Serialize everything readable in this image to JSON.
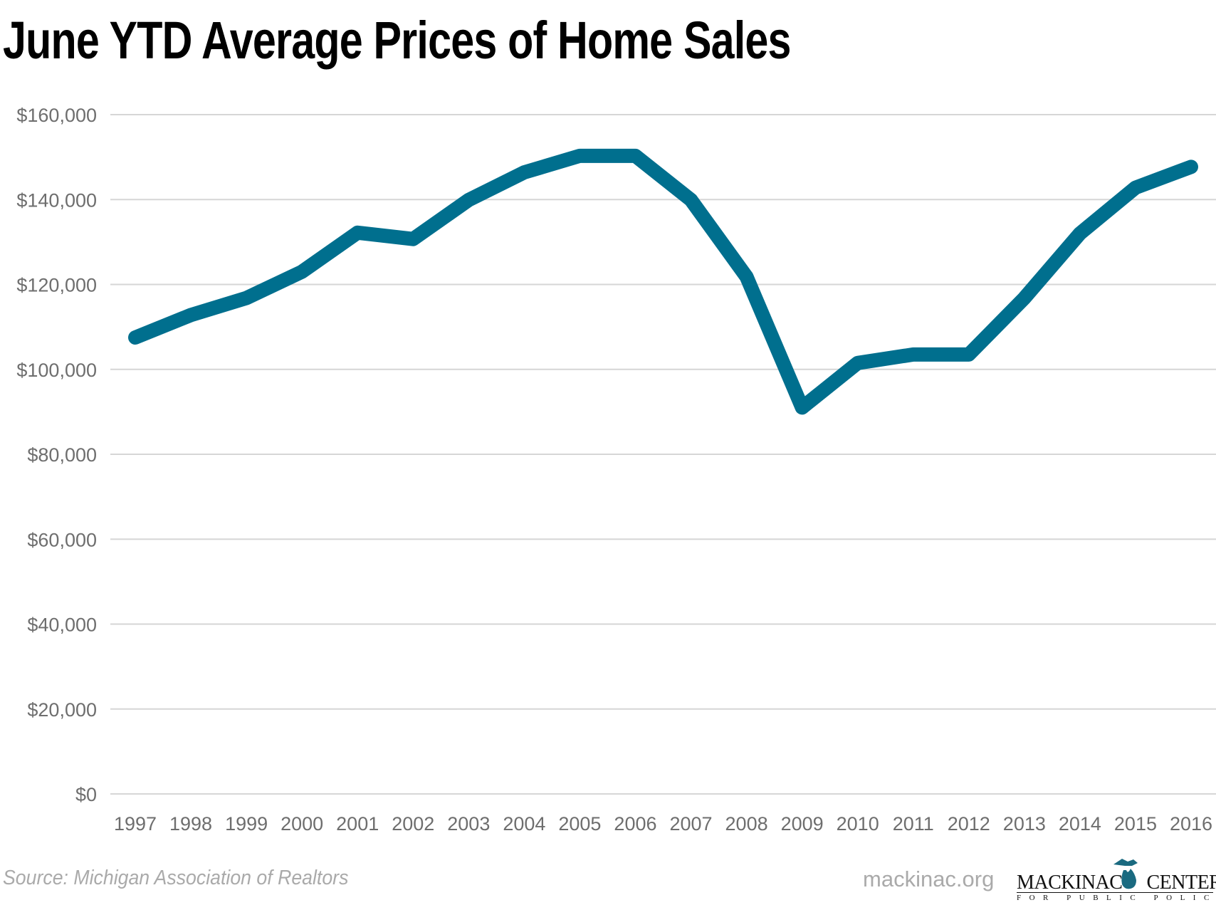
{
  "chart_data": {
    "type": "line",
    "title": "June YTD Average Prices of Home Sales",
    "xlabel": "",
    "ylabel": "",
    "x": [
      "1997",
      "1998",
      "1999",
      "2000",
      "2001",
      "2002",
      "2003",
      "2004",
      "2005",
      "2006",
      "2007",
      "2008",
      "2009",
      "2010",
      "2011",
      "2012",
      "2013",
      "2014",
      "2015",
      "2016"
    ],
    "series": [
      {
        "values": [
          107500,
          112800,
          116800,
          123000,
          132200,
          130700,
          139900,
          146400,
          150300,
          150300,
          139900,
          121800,
          91000,
          101500,
          103500,
          103500,
          116800,
          132000,
          142800,
          147700
        ]
      }
    ],
    "ylim": [
      0,
      160000
    ],
    "yticks": [
      0,
      20000,
      40000,
      60000,
      80000,
      100000,
      120000,
      140000,
      160000
    ],
    "ytick_labels": [
      "$0",
      "$20,000",
      "$40,000",
      "$60,000",
      "$80,000",
      "$100,000",
      "$120,000",
      "$140,000",
      "$160,000"
    ],
    "grid": "horizontal",
    "legend": "none",
    "line_color": "#006f8e",
    "grid_color": "#d6d6d6"
  },
  "footer": {
    "source": "Source: Michigan Association of Realtors",
    "site": "mackinac.org",
    "logo_text": "MACKINAC CENTER FOR PUBLIC POLICY",
    "logo_color": "#1a6a80"
  }
}
